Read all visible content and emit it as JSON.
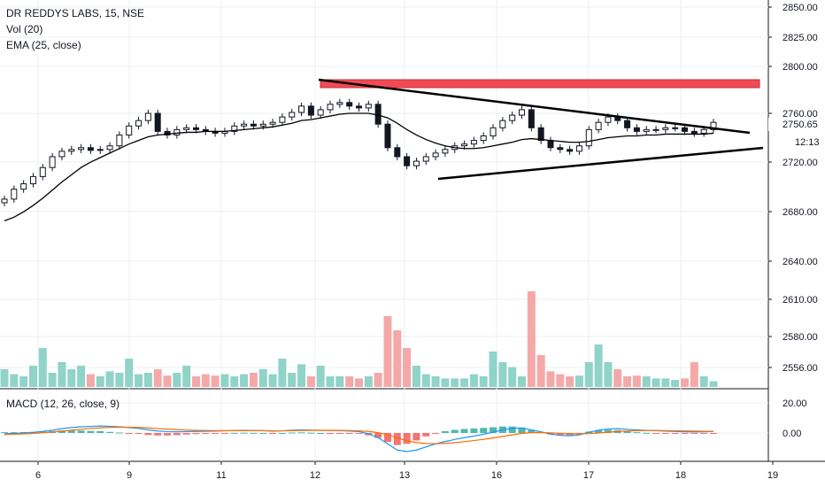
{
  "chart_data": [
    {
      "type": "candlestick",
      "title": "DR REDDYS LABS, 15, NSE",
      "indicators": [
        "Vol (20)",
        "EMA (25, close)"
      ],
      "price_axis": {
        "ticks": [
          2850,
          2825,
          2800,
          2760,
          2720,
          2680,
          2640,
          2610,
          2580,
          2556
        ],
        "labels": [
          "2850.00",
          "2825.00",
          "2800.00",
          "2760.00",
          "2720.00",
          "2680.00",
          "2640.00",
          "2610.00",
          "2580.00",
          "2556.00"
        ],
        "last_price": "2750.65",
        "countdown": "12:13"
      },
      "x_axis": {
        "labels": [
          "6",
          "9",
          "11",
          "12",
          "13",
          "16",
          "17",
          "18",
          "19"
        ]
      },
      "colors": {
        "up": "#26a69a",
        "down": "#ef5350",
        "vol_up": "#8fd3c9",
        "vol_down": "#f4a9a8",
        "ema": "#000000",
        "resistance_zone": "#f23645"
      },
      "series": [
        {
          "name": "price_close",
          "values": [
            2665,
            2676,
            2682,
            2690,
            2700,
            2712,
            2718,
            2720,
            2722,
            2719,
            2720,
            2724,
            2736,
            2746,
            2752,
            2760,
            2740,
            2736,
            2742,
            2744,
            2742,
            2740,
            2738,
            2740,
            2746,
            2748,
            2746,
            2748,
            2750,
            2756,
            2761,
            2768,
            2758,
            2764,
            2770,
            2772,
            2768,
            2766,
            2770,
            2748,
            2722,
            2712,
            2702,
            2707,
            2712,
            2716,
            2720,
            2724,
            2726,
            2730,
            2735,
            2744,
            2752,
            2758,
            2764,
            2744,
            2730,
            2722,
            2720,
            2718,
            2724,
            2742,
            2750,
            2756,
            2752,
            2744,
            2740,
            2742,
            2742,
            2744,
            2744,
            2740,
            2738,
            2742,
            2750
          ]
        },
        {
          "name": "ema_25",
          "values": [
            2641,
            2645,
            2651,
            2658,
            2666,
            2675,
            2684,
            2692,
            2700,
            2706,
            2711,
            2716,
            2721,
            2726,
            2730,
            2734,
            2736,
            2737,
            2738,
            2739,
            2739,
            2740,
            2740,
            2740,
            2741,
            2742,
            2743,
            2744,
            2745,
            2747,
            2749,
            2752,
            2753,
            2755,
            2757,
            2759,
            2760,
            2760,
            2760,
            2758,
            2755,
            2749,
            2742,
            2736,
            2731,
            2727,
            2724,
            2722,
            2721,
            2721,
            2722,
            2724,
            2726,
            2728,
            2731,
            2732,
            2731,
            2730,
            2729,
            2728,
            2728,
            2729,
            2731,
            2733,
            2734,
            2735,
            2735,
            2736,
            2736,
            2737,
            2737,
            2737,
            2737,
            2737,
            2738
          ]
        },
        {
          "name": "volume",
          "values": [
            0.25,
            0.18,
            0.15,
            0.3,
            0.55,
            0.2,
            0.35,
            0.25,
            0.3,
            0.18,
            0.15,
            0.22,
            0.2,
            0.4,
            0.18,
            0.2,
            0.25,
            0.16,
            0.2,
            0.3,
            0.15,
            0.18,
            0.16,
            0.18,
            0.15,
            0.18,
            0.2,
            0.25,
            0.18,
            0.4,
            0.2,
            0.32,
            0.15,
            0.3,
            0.15,
            0.15,
            0.15,
            0.12,
            0.15,
            0.2,
            1.0,
            0.8,
            0.55,
            0.3,
            0.18,
            0.15,
            0.12,
            0.12,
            0.12,
            0.18,
            0.15,
            0.5,
            0.35,
            0.28,
            0.15,
            1.35,
            0.45,
            0.22,
            0.18,
            0.15,
            0.16,
            0.35,
            0.6,
            0.35,
            0.25,
            0.15,
            0.16,
            0.15,
            0.12,
            0.12,
            0.1,
            0.12,
            0.35,
            0.15,
            0.08
          ]
        },
        {
          "name": "macd",
          "values": [
            -0.5,
            -0.3,
            0.0,
            0.4,
            1.0,
            1.8,
            2.8,
            3.5,
            4.0,
            4.2,
            4.5,
            4.3,
            4.0,
            3.5,
            3.0,
            2.0,
            1.3,
            0.9,
            0.8,
            0.9,
            1.0,
            1.1,
            1.2,
            1.4,
            1.6,
            1.7,
            1.6,
            1.5,
            1.2,
            1.4,
            1.8,
            2.0,
            1.9,
            1.7,
            1.6,
            1.5,
            1.3,
            0.9,
            -0.5,
            -3.0,
            -7.0,
            -11.0,
            -12.0,
            -11.0,
            -9.0,
            -7.0,
            -5.5,
            -4.2,
            -3.0,
            -2.0,
            -0.8,
            0.5,
            2.0,
            3.0,
            3.2,
            2.0,
            0.8,
            -0.8,
            -1.5,
            -1.8,
            -1.2,
            0.5,
            1.8,
            2.6,
            2.8,
            2.4,
            2.0,
            1.7,
            1.5,
            1.2,
            1.0,
            0.8,
            0.7,
            0.8,
            1.0
          ]
        },
        {
          "name": "macd_signal",
          "values": [
            -1.0,
            -0.8,
            -0.6,
            -0.3,
            0.1,
            0.6,
            1.2,
            1.8,
            2.4,
            2.9,
            3.3,
            3.6,
            3.7,
            3.7,
            3.6,
            3.3,
            2.9,
            2.5,
            2.2,
            1.9,
            1.7,
            1.6,
            1.5,
            1.5,
            1.5,
            1.5,
            1.5,
            1.5,
            1.4,
            1.4,
            1.5,
            1.6,
            1.7,
            1.7,
            1.7,
            1.6,
            1.6,
            1.4,
            1.0,
            0.2,
            -1.2,
            -3.2,
            -5.0,
            -6.2,
            -6.8,
            -6.9,
            -6.7,
            -6.2,
            -5.6,
            -4.9,
            -4.1,
            -3.2,
            -2.2,
            -1.2,
            -0.3,
            0.2,
            0.3,
            0.1,
            -0.2,
            -0.5,
            -0.6,
            -0.4,
            0.0,
            0.5,
            1.0,
            1.3,
            1.5,
            1.6,
            1.6,
            1.5,
            1.4,
            1.3,
            1.2,
            1.1,
            1.1
          ]
        }
      ]
    },
    {
      "type": "macd",
      "title": "MACD (12, 26, close, 9)",
      "axis": {
        "ticks": [
          20,
          0
        ],
        "labels": [
          "20.00",
          "0.00"
        ]
      },
      "colors": {
        "macd": "#2196f3",
        "signal": "#ff6d00",
        "hist_pos": "#26a69a",
        "hist_neg": "#ef5350"
      }
    }
  ]
}
